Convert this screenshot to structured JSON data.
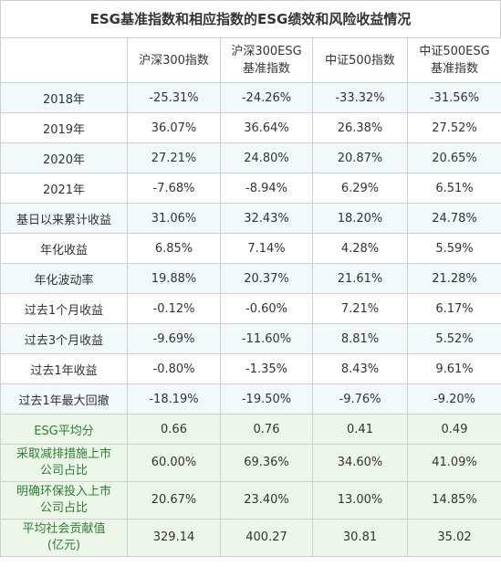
{
  "title": "ESG基准指数和相应指数的ESG绩效和风险收益情况",
  "headers": [
    "",
    "沪深300指数",
    "沪深300ESG\n基准指数",
    "中证500指数",
    "中证500ESG\n基准指数"
  ],
  "rows": [
    {
      "label": "2018年",
      "values": [
        "-25.31%",
        "-24.26%",
        "-33.32%",
        "-31.56%"
      ]
    },
    {
      "label": "2019年",
      "values": [
        "36.07%",
        "36.64%",
        "26.38%",
        "27.52%"
      ]
    },
    {
      "label": "2020年",
      "values": [
        "27.21%",
        "24.80%",
        "20.87%",
        "20.65%"
      ]
    },
    {
      "label": "2021年",
      "values": [
        "-7.68%",
        "-8.94%",
        "6.29%",
        "6.51%"
      ]
    },
    {
      "label": "基日以来累计收益",
      "values": [
        "31.06%",
        "32.43%",
        "18.20%",
        "24.78%"
      ]
    },
    {
      "label": "年化收益",
      "values": [
        "6.85%",
        "7.14%",
        "4.28%",
        "5.59%"
      ]
    },
    {
      "label": "年化波动率",
      "values": [
        "19.88%",
        "20.37%",
        "21.61%",
        "21.28%"
      ]
    },
    {
      "label": "过去1个月收益",
      "values": [
        "-0.12%",
        "-0.60%",
        "7.21%",
        "6.17%"
      ]
    },
    {
      "label": "过去3个月收益",
      "values": [
        "-9.69%",
        "-11.60%",
        "8.81%",
        "5.52%"
      ]
    },
    {
      "label": "过去1年收益",
      "values": [
        "-0.80%",
        "-1.35%",
        "8.43%",
        "9.61%"
      ]
    },
    {
      "label": "过去1年最大回撤",
      "values": [
        "-18.19%",
        "-19.50%",
        "-9.76%",
        "-9.20%"
      ]
    },
    {
      "label": "ESG平均分",
      "values": [
        "0.66",
        "0.76",
        "0.41",
        "0.49"
      ]
    },
    {
      "label": "采取减排措施上市\n公司占比",
      "values": [
        "60.00%",
        "69.36%",
        "34.60%",
        "41.09%"
      ]
    },
    {
      "label": "明确环保投入上市\n公司占比",
      "values": [
        "20.67%",
        "23.40%",
        "13.00%",
        "14.85%"
      ]
    },
    {
      "label": "平均社会贡献值\n(亿元)",
      "values": [
        "329.14",
        "400.27",
        "30.81",
        "35.02"
      ]
    }
  ]
}
